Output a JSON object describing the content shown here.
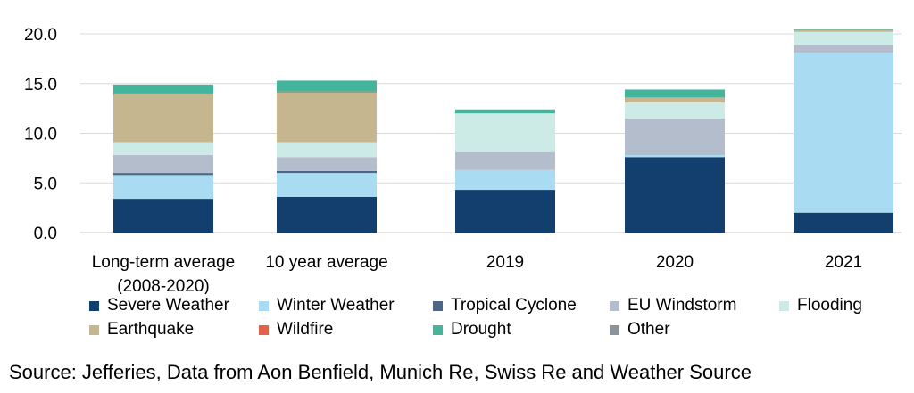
{
  "chart_data": {
    "type": "bar",
    "stacked": true,
    "categories": [
      "Long-term average (2008-2020)",
      "10 year average",
      "2019",
      "2020",
      "2021"
    ],
    "category_lines": [
      [
        "Long-term average",
        "(2008-2020)"
      ],
      [
        "10 year average"
      ],
      [
        "2019"
      ],
      [
        "2020"
      ],
      [
        "2021"
      ]
    ],
    "yticks": [
      "0.0",
      "5.0",
      "10.0",
      "15.0",
      "20.0"
    ],
    "ylim": [
      0,
      20.5
    ],
    "grid": true,
    "legend_position": "bottom",
    "series": [
      {
        "name": "Severe Weather",
        "color": "#123F6E",
        "values": [
          3.4,
          3.6,
          4.3,
          7.6,
          2.0
        ]
      },
      {
        "name": "Winter Weather",
        "color": "#A9DBF3",
        "values": [
          2.4,
          2.4,
          2.0,
          0.2,
          16.1
        ]
      },
      {
        "name": "Tropical Cyclone",
        "color": "#4C6683",
        "values": [
          0.2,
          0.2,
          0.0,
          0.0,
          0.0
        ]
      },
      {
        "name": "EU Windstorm",
        "color": "#B3BDCB",
        "values": [
          1.8,
          1.4,
          1.8,
          3.7,
          0.8
        ]
      },
      {
        "name": "Flooding",
        "color": "#CDEBE6",
        "values": [
          1.3,
          1.5,
          3.9,
          1.6,
          1.3
        ]
      },
      {
        "name": "Earthquake",
        "color": "#C6B68F",
        "values": [
          4.8,
          5.0,
          0.0,
          0.5,
          0.2
        ]
      },
      {
        "name": "Wildfire",
        "color": "#E2634A",
        "values": [
          0.1,
          0.1,
          0.0,
          0.0,
          0.0
        ]
      },
      {
        "name": "Drought",
        "color": "#44B49D",
        "values": [
          0.9,
          1.1,
          0.4,
          0.8,
          0.1
        ]
      },
      {
        "name": "Other",
        "color": "#8A949C",
        "values": [
          0.0,
          0.0,
          0.0,
          0.0,
          0.0
        ]
      }
    ]
  },
  "legend_rows": [
    [
      "Severe Weather",
      "Winter Weather",
      "Tropical Cyclone",
      "EU Windstorm",
      "Flooding"
    ],
    [
      "Earthquake",
      "Wildfire",
      "Drought",
      "Other"
    ]
  ],
  "source": "Source: Jefferies, Data from Aon Benfield, Munich Re, Swiss Re and Weather Source"
}
